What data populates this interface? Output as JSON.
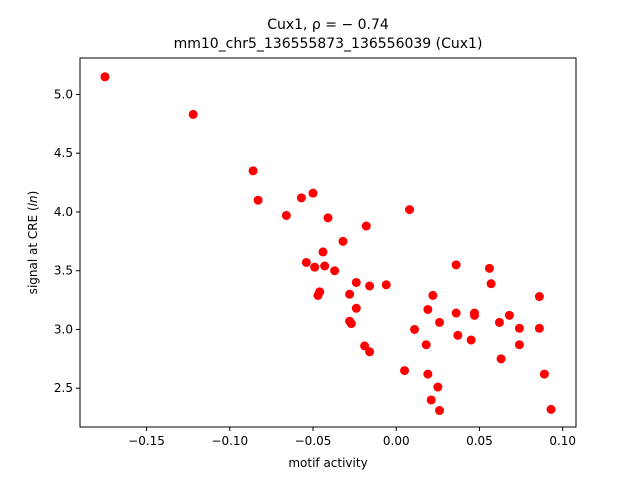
{
  "chart_data": {
    "type": "scatter",
    "title_line1": "Cux1, ρ = − 0.74",
    "title_line2": "mm10_chr5_136555873_136556039 (Cux1)",
    "xlabel": "motif activity",
    "ylabel": "signal at CRE (ln)",
    "xlim": [
      -0.19,
      0.108
    ],
    "ylim": [
      2.17,
      5.31
    ],
    "xticks": [
      -0.15,
      -0.1,
      -0.05,
      0.0,
      0.05,
      0.1
    ],
    "xtick_labels": [
      "−0.15",
      "−0.10",
      "−0.05",
      "0.00",
      "0.05",
      "0.10"
    ],
    "yticks": [
      2.5,
      3.0,
      3.5,
      4.0,
      4.5,
      5.0
    ],
    "ytick_labels": [
      "2.5",
      "3.0",
      "3.5",
      "4.0",
      "4.5",
      "5.0"
    ],
    "grid": false,
    "marker_color": "#ff0000",
    "points": [
      {
        "x": -0.175,
        "y": 5.15
      },
      {
        "x": -0.122,
        "y": 4.83
      },
      {
        "x": -0.086,
        "y": 4.35
      },
      {
        "x": -0.083,
        "y": 4.1
      },
      {
        "x": -0.066,
        "y": 3.97
      },
      {
        "x": -0.057,
        "y": 4.12
      },
      {
        "x": -0.05,
        "y": 4.16
      },
      {
        "x": -0.041,
        "y": 3.95
      },
      {
        "x": -0.032,
        "y": 3.75
      },
      {
        "x": -0.018,
        "y": 3.88
      },
      {
        "x": 0.008,
        "y": 4.02
      },
      {
        "x": -0.054,
        "y": 3.57
      },
      {
        "x": -0.049,
        "y": 3.53
      },
      {
        "x": -0.044,
        "y": 3.66
      },
      {
        "x": -0.043,
        "y": 3.54
      },
      {
        "x": -0.037,
        "y": 3.5
      },
      {
        "x": -0.047,
        "y": 3.29
      },
      {
        "x": -0.046,
        "y": 3.32
      },
      {
        "x": -0.028,
        "y": 3.3
      },
      {
        "x": -0.024,
        "y": 3.4
      },
      {
        "x": -0.016,
        "y": 3.37
      },
      {
        "x": -0.006,
        "y": 3.38
      },
      {
        "x": -0.024,
        "y": 3.18
      },
      {
        "x": -0.028,
        "y": 3.07
      },
      {
        "x": -0.027,
        "y": 3.05
      },
      {
        "x": -0.019,
        "y": 2.86
      },
      {
        "x": -0.016,
        "y": 2.81
      },
      {
        "x": 0.005,
        "y": 2.65
      },
      {
        "x": 0.011,
        "y": 3.0
      },
      {
        "x": 0.018,
        "y": 2.87
      },
      {
        "x": 0.019,
        "y": 3.17
      },
      {
        "x": 0.022,
        "y": 3.29
      },
      {
        "x": 0.026,
        "y": 3.06
      },
      {
        "x": 0.019,
        "y": 2.62
      },
      {
        "x": 0.021,
        "y": 2.4
      },
      {
        "x": 0.025,
        "y": 2.51
      },
      {
        "x": 0.026,
        "y": 2.31
      },
      {
        "x": 0.036,
        "y": 3.55
      },
      {
        "x": 0.036,
        "y": 3.14
      },
      {
        "x": 0.037,
        "y": 2.95
      },
      {
        "x": 0.045,
        "y": 2.91
      },
      {
        "x": 0.047,
        "y": 3.14
      },
      {
        "x": 0.047,
        "y": 3.12
      },
      {
        "x": 0.056,
        "y": 3.52
      },
      {
        "x": 0.057,
        "y": 3.39
      },
      {
        "x": 0.062,
        "y": 3.06
      },
      {
        "x": 0.063,
        "y": 2.75
      },
      {
        "x": 0.068,
        "y": 3.12
      },
      {
        "x": 0.074,
        "y": 3.01
      },
      {
        "x": 0.074,
        "y": 2.87
      },
      {
        "x": 0.086,
        "y": 3.28
      },
      {
        "x": 0.086,
        "y": 3.01
      },
      {
        "x": 0.089,
        "y": 2.62
      },
      {
        "x": 0.093,
        "y": 2.32
      }
    ]
  }
}
